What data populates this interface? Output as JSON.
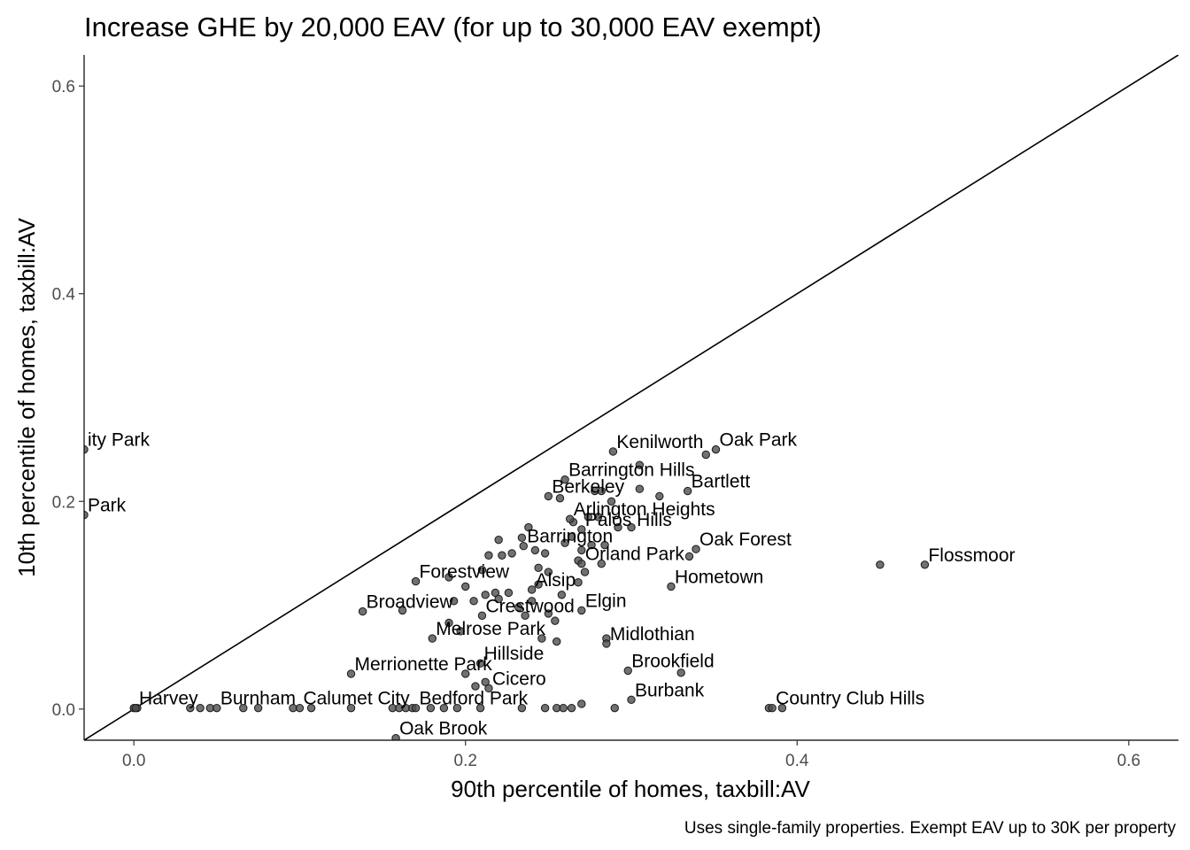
{
  "chart_data": {
    "type": "scatter",
    "title": "Increase GHE by 20,000 EAV (for up to 30,000 EAV exempt)",
    "xlabel": "90th percentile of homes, taxbill:AV",
    "ylabel": "10th percentile of homes, taxbill:AV",
    "caption": "Uses single-family properties. Exempt EAV up to 30K per property",
    "xlim": [
      -0.03,
      0.63
    ],
    "ylim": [
      -0.03,
      0.63
    ],
    "x_ticks": [
      0.0,
      0.2,
      0.4,
      0.6
    ],
    "y_ticks": [
      0.0,
      0.2,
      0.4,
      0.6
    ],
    "x_tick_labels": [
      "0.0",
      "0.2",
      "0.4",
      "0.6"
    ],
    "y_tick_labels": [
      "0.0",
      "0.2",
      "0.4",
      "0.6"
    ],
    "reference_line": "y = x",
    "grid": false,
    "point_color": "#4d4d4d",
    "labeled_points": [
      {
        "label": "ity Park",
        "x": -0.03,
        "y": 0.25
      },
      {
        "label": "Park",
        "x": -0.03,
        "y": 0.187
      },
      {
        "label": "Kenilworth",
        "x": 0.289,
        "y": 0.248
      },
      {
        "label": "Oak Park",
        "x": 0.351,
        "y": 0.25
      },
      {
        "label": "Barrington Hills",
        "x": 0.26,
        "y": 0.221
      },
      {
        "label": "Bartlett",
        "x": 0.334,
        "y": 0.21
      },
      {
        "label": "Berkeley",
        "x": 0.25,
        "y": 0.205
      },
      {
        "label": "Arlington Heights",
        "x": 0.263,
        "y": 0.183
      },
      {
        "label": "Palos Hills",
        "x": 0.27,
        "y": 0.173
      },
      {
        "label": "Barrington",
        "x": 0.235,
        "y": 0.157
      },
      {
        "label": "Oak Forest",
        "x": 0.339,
        "y": 0.154
      },
      {
        "label": "Orland Park",
        "x": 0.27,
        "y": 0.14
      },
      {
        "label": "Flossmoor",
        "x": 0.477,
        "y": 0.139
      },
      {
        "label": "Forestview",
        "x": 0.17,
        "y": 0.123
      },
      {
        "label": "Hometown",
        "x": 0.324,
        "y": 0.118
      },
      {
        "label": "Alsip",
        "x": 0.24,
        "y": 0.115
      },
      {
        "label": "Broadview",
        "x": 0.138,
        "y": 0.094
      },
      {
        "label": "Crestwood",
        "x": 0.21,
        "y": 0.09
      },
      {
        "label": "Elgin",
        "x": 0.27,
        "y": 0.095
      },
      {
        "label": "Melrose Park",
        "x": 0.18,
        "y": 0.068
      },
      {
        "label": "Midlothian",
        "x": 0.285,
        "y": 0.063
      },
      {
        "label": "Merrionette Park",
        "x": 0.131,
        "y": 0.034
      },
      {
        "label": "Hillside",
        "x": 0.209,
        "y": 0.044
      },
      {
        "label": "Brookfield",
        "x": 0.298,
        "y": 0.037
      },
      {
        "label": "Cicero",
        "x": 0.214,
        "y": 0.02
      },
      {
        "label": "Burbank",
        "x": 0.3,
        "y": 0.009
      },
      {
        "label": "Harvey",
        "x": 0.001,
        "y": 0.001
      },
      {
        "label": "Burnham",
        "x": 0.05,
        "y": 0.001
      },
      {
        "label": "Calumet City",
        "x": 0.1,
        "y": 0.001
      },
      {
        "label": "Bedford Park",
        "x": 0.17,
        "y": 0.001
      },
      {
        "label": "Country Club Hills",
        "x": 0.385,
        "y": 0.001
      },
      {
        "label": "Oak Brook",
        "x": 0.158,
        "y": -0.028
      }
    ],
    "unlabeled_points": [
      {
        "x": 0.0,
        "y": 0.001
      },
      {
        "x": 0.002,
        "y": 0.001
      },
      {
        "x": 0.034,
        "y": 0.001
      },
      {
        "x": 0.04,
        "y": 0.001
      },
      {
        "x": 0.046,
        "y": 0.001
      },
      {
        "x": 0.066,
        "y": 0.001
      },
      {
        "x": 0.075,
        "y": 0.001
      },
      {
        "x": 0.096,
        "y": 0.001
      },
      {
        "x": 0.107,
        "y": 0.001
      },
      {
        "x": 0.131,
        "y": 0.001
      },
      {
        "x": 0.156,
        "y": 0.001
      },
      {
        "x": 0.16,
        "y": 0.001
      },
      {
        "x": 0.164,
        "y": 0.001
      },
      {
        "x": 0.168,
        "y": 0.001
      },
      {
        "x": 0.179,
        "y": 0.001
      },
      {
        "x": 0.187,
        "y": 0.001
      },
      {
        "x": 0.195,
        "y": 0.001
      },
      {
        "x": 0.209,
        "y": 0.001
      },
      {
        "x": 0.234,
        "y": 0.001
      },
      {
        "x": 0.248,
        "y": 0.001
      },
      {
        "x": 0.255,
        "y": 0.001
      },
      {
        "x": 0.259,
        "y": 0.001
      },
      {
        "x": 0.264,
        "y": 0.001
      },
      {
        "x": 0.27,
        "y": 0.005
      },
      {
        "x": 0.29,
        "y": 0.001
      },
      {
        "x": 0.383,
        "y": 0.001
      },
      {
        "x": 0.391,
        "y": 0.001
      },
      {
        "x": 0.2,
        "y": 0.034
      },
      {
        "x": 0.206,
        "y": 0.022
      },
      {
        "x": 0.212,
        "y": 0.026
      },
      {
        "x": 0.246,
        "y": 0.068
      },
      {
        "x": 0.19,
        "y": 0.083
      },
      {
        "x": 0.197,
        "y": 0.075
      },
      {
        "x": 0.162,
        "y": 0.095
      },
      {
        "x": 0.193,
        "y": 0.104
      },
      {
        "x": 0.205,
        "y": 0.104
      },
      {
        "x": 0.19,
        "y": 0.127
      },
      {
        "x": 0.2,
        "y": 0.118
      },
      {
        "x": 0.21,
        "y": 0.134
      },
      {
        "x": 0.212,
        "y": 0.11
      },
      {
        "x": 0.218,
        "y": 0.112
      },
      {
        "x": 0.22,
        "y": 0.106
      },
      {
        "x": 0.226,
        "y": 0.112
      },
      {
        "x": 0.232,
        "y": 0.098
      },
      {
        "x": 0.24,
        "y": 0.104
      },
      {
        "x": 0.244,
        "y": 0.12
      },
      {
        "x": 0.25,
        "y": 0.092
      },
      {
        "x": 0.254,
        "y": 0.085
      },
      {
        "x": 0.258,
        "y": 0.11
      },
      {
        "x": 0.268,
        "y": 0.122
      },
      {
        "x": 0.272,
        "y": 0.132
      },
      {
        "x": 0.244,
        "y": 0.136
      },
      {
        "x": 0.25,
        "y": 0.132
      },
      {
        "x": 0.214,
        "y": 0.148
      },
      {
        "x": 0.222,
        "y": 0.148
      },
      {
        "x": 0.228,
        "y": 0.15
      },
      {
        "x": 0.22,
        "y": 0.163
      },
      {
        "x": 0.234,
        "y": 0.165
      },
      {
        "x": 0.238,
        "y": 0.175
      },
      {
        "x": 0.242,
        "y": 0.153
      },
      {
        "x": 0.248,
        "y": 0.15
      },
      {
        "x": 0.26,
        "y": 0.16
      },
      {
        "x": 0.264,
        "y": 0.166
      },
      {
        "x": 0.27,
        "y": 0.153
      },
      {
        "x": 0.276,
        "y": 0.158
      },
      {
        "x": 0.284,
        "y": 0.158
      },
      {
        "x": 0.292,
        "y": 0.175
      },
      {
        "x": 0.3,
        "y": 0.175
      },
      {
        "x": 0.265,
        "y": 0.18
      },
      {
        "x": 0.274,
        "y": 0.185
      },
      {
        "x": 0.28,
        "y": 0.185
      },
      {
        "x": 0.257,
        "y": 0.203
      },
      {
        "x": 0.282,
        "y": 0.21
      },
      {
        "x": 0.288,
        "y": 0.2
      },
      {
        "x": 0.305,
        "y": 0.212
      },
      {
        "x": 0.317,
        "y": 0.205
      },
      {
        "x": 0.305,
        "y": 0.235
      },
      {
        "x": 0.345,
        "y": 0.245
      },
      {
        "x": 0.278,
        "y": 0.21
      },
      {
        "x": 0.282,
        "y": 0.14
      },
      {
        "x": 0.335,
        "y": 0.147
      },
      {
        "x": 0.45,
        "y": 0.139
      },
      {
        "x": 0.33,
        "y": 0.035
      },
      {
        "x": 0.285,
        "y": 0.068
      },
      {
        "x": 0.268,
        "y": 0.143
      },
      {
        "x": 0.255,
        "y": 0.065
      },
      {
        "x": 0.236,
        "y": 0.09
      }
    ]
  }
}
